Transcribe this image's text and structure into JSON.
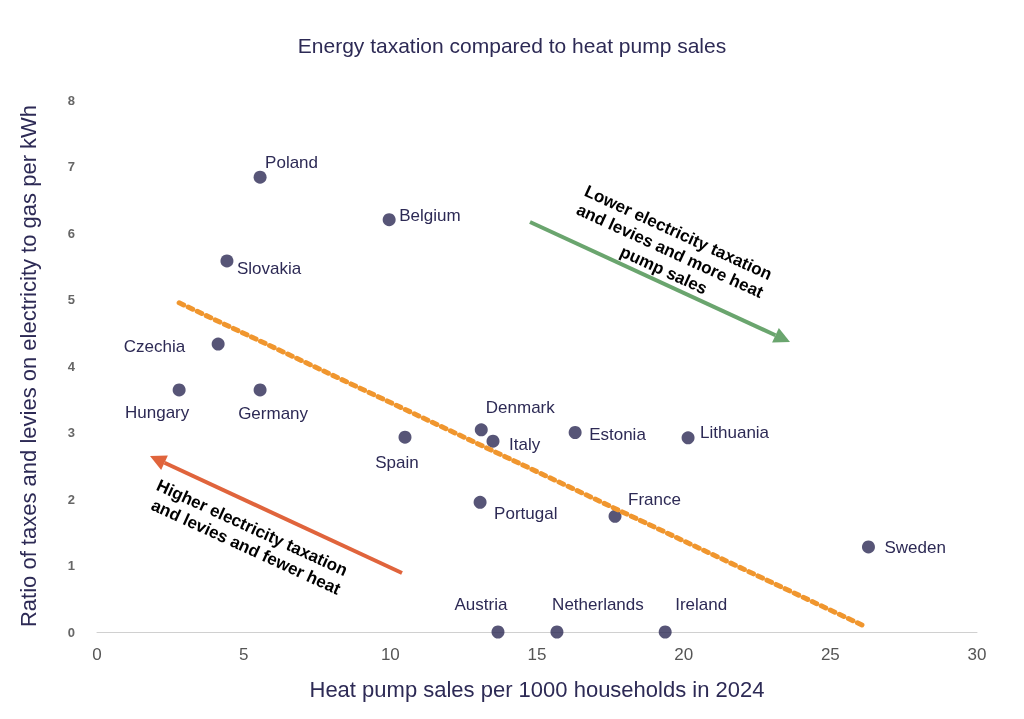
{
  "chart_data": {
    "type": "scatter",
    "title": "Energy taxation compared to heat pump sales",
    "xlabel": "Heat pump sales per 1000 households in 2024",
    "ylabel": "Ratio of taxes and levies on electricity to gas per kWh",
    "x": [
      5.56,
      9.96,
      4.43,
      4.13,
      2.8,
      5.56,
      10.5,
      13.1,
      13.5,
      16.3,
      20.15,
      13.06,
      17.66,
      26.3,
      13.67,
      15.68,
      19.37
    ],
    "series": [
      {
        "color": "#2d2a55",
        "values": [
          6.84,
          6.2,
          5.58,
          4.33,
          3.64,
          3.64,
          2.93,
          3.04,
          2.87,
          3.0,
          2.92,
          1.95,
          1.74,
          1.28,
          0,
          0,
          0
        ]
      },
      {
        "type": "line",
        "color": "#f0962e",
        "line_style": "dotted",
        "marker": "none",
        "x": [
          2.8,
          26.2
        ],
        "values": [
          4.95,
          0.08
        ]
      }
    ],
    "xlim": [
      0,
      30
    ],
    "xticks": [
      0,
      5,
      10,
      15,
      20,
      25,
      30
    ],
    "ylim": [
      0,
      8
    ],
    "yticks": [
      0,
      1,
      2,
      3,
      4,
      5,
      6,
      7,
      8
    ],
    "grid": false,
    "marker": "circle",
    "annotations": [
      "Lower electricity taxation and levies and more heat pump sales",
      "Higher electricity taxation and levies and fewer heat",
      {
        "text": "Poland",
        "x": 5.56,
        "y": 6.84
      },
      {
        "text": "Belgium",
        "x": 9.96,
        "y": 6.2
      },
      {
        "text": "Slovakia",
        "x": 4.43,
        "y": 5.58
      },
      {
        "text": "Czechia",
        "x": 4.13,
        "y": 4.33
      },
      {
        "text": "Hungary",
        "x": 2.8,
        "y": 3.64
      },
      {
        "text": "Germany",
        "x": 5.56,
        "y": 3.64
      },
      {
        "text": "Spain",
        "x": 10.5,
        "y": 2.93
      },
      {
        "text": "Denmark",
        "x": 13.1,
        "y": 3.04
      },
      {
        "text": "Italy",
        "x": 13.5,
        "y": 2.87
      },
      {
        "text": "Estonia",
        "x": 16.3,
        "y": 3.0
      },
      {
        "text": "Lithuania",
        "x": 20.15,
        "y": 2.92
      },
      {
        "text": "Portugal",
        "x": 13.06,
        "y": 1.95
      },
      {
        "text": "France",
        "x": 17.66,
        "y": 1.74
      },
      {
        "text": "Sweden",
        "x": 26.3,
        "y": 1.28
      },
      {
        "text": "Austria",
        "x": 13.67,
        "y": 0
      },
      {
        "text": "Netherlands",
        "x": 15.68,
        "y": 0
      },
      {
        "text": "Ireland",
        "x": 19.37,
        "y": 0
      }
    ]
  }
}
